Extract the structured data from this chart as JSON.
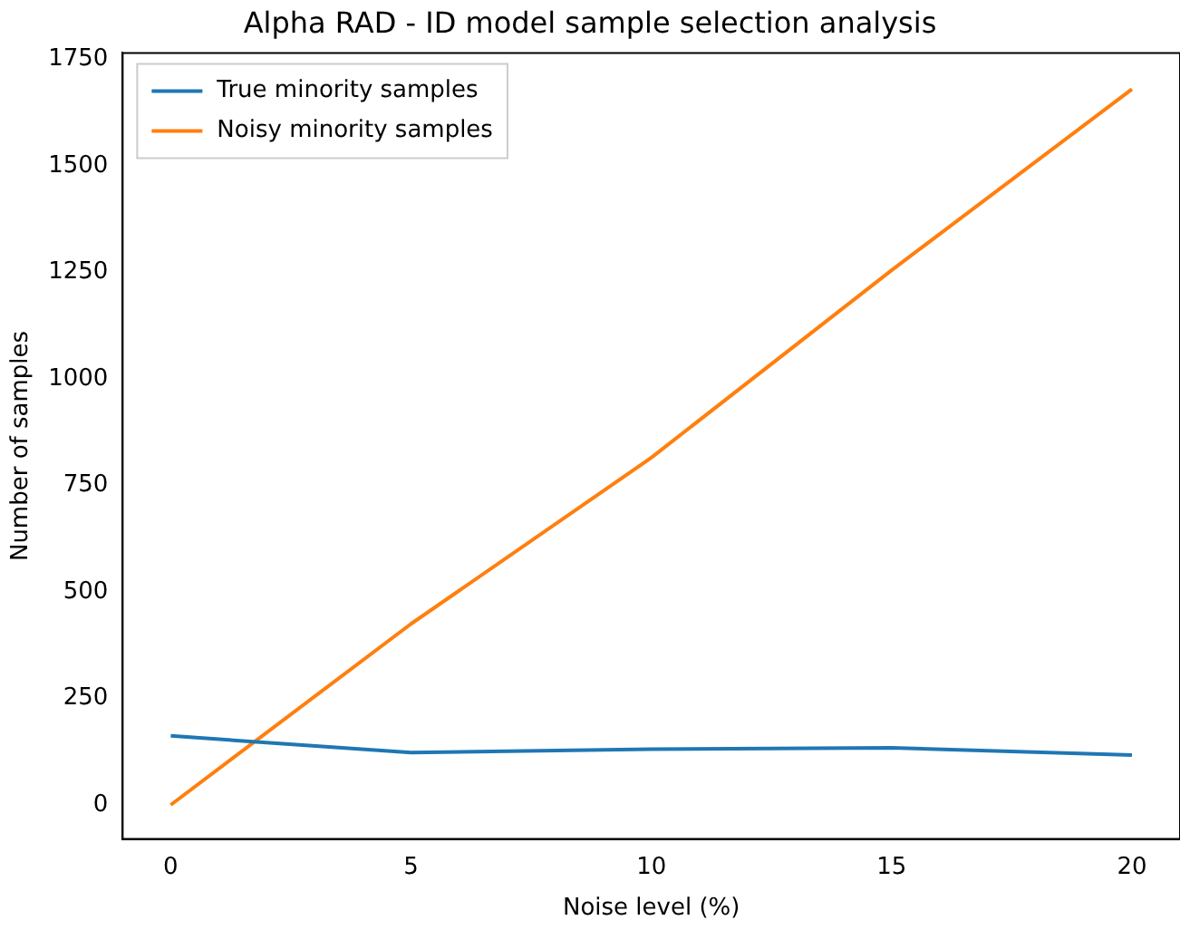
{
  "chart_data": {
    "type": "line",
    "title": "Alpha RAD - ID model sample selection analysis",
    "xlabel": "Noise level (%)",
    "ylabel": "Number of samples",
    "x": [
      0,
      5,
      10,
      15,
      20
    ],
    "series": [
      {
        "name": "True minority samples",
        "color": "#1f77b4",
        "values": [
          162,
          123,
          131,
          134,
          117
        ]
      },
      {
        "name": "Noisy minority samples",
        "color": "#ff7f0e",
        "values": [
          0,
          425,
          815,
          1255,
          1680
        ]
      }
    ],
    "xlim": [
      -1,
      21
    ],
    "xticks": [
      0,
      5,
      10,
      15,
      20
    ],
    "ylim": [
      -80,
      1765
    ],
    "yticks": [
      0,
      250,
      500,
      750,
      1000,
      1250,
      1500,
      1750
    ],
    "grid": false,
    "legend": "top left",
    "marker": "none",
    "line_style": "solid"
  }
}
